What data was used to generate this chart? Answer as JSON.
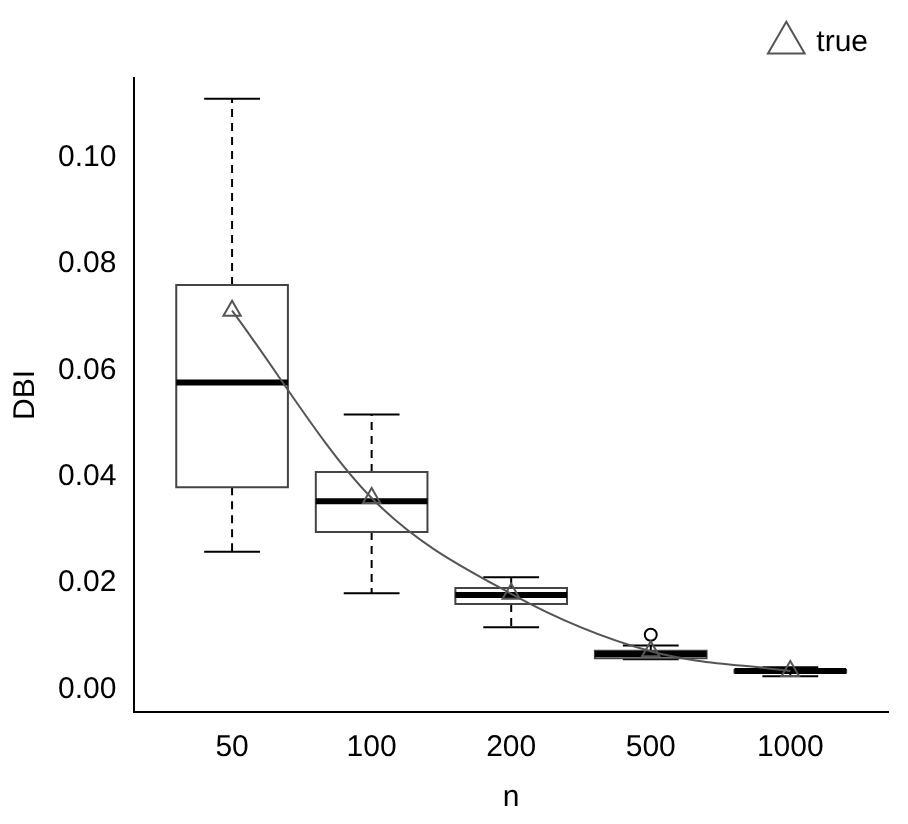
{
  "chart_data": {
    "type": "box",
    "xlabel": "n",
    "ylabel": "DBI",
    "categories": [
      "50",
      "100",
      "200",
      "500",
      "1000"
    ],
    "boxes": [
      {
        "low": 0.0259,
        "q1": 0.038,
        "median": 0.0577,
        "q3": 0.076,
        "high": 0.111
      },
      {
        "low": 0.0181,
        "q1": 0.0296,
        "median": 0.0354,
        "q3": 0.0409,
        "high": 0.0517
      },
      {
        "low": 0.0117,
        "q1": 0.0161,
        "median": 0.0178,
        "q3": 0.0191,
        "high": 0.0211
      },
      {
        "low": 0.0057,
        "q1": 0.0059,
        "median": 0.0067,
        "q3": 0.0073,
        "high": 0.0083,
        "outliers": [
          0.0103
        ]
      },
      {
        "low": 0.0025,
        "q1": 0.0032,
        "median": 0.0035,
        "q3": 0.0037,
        "high": 0.0042
      }
    ],
    "series": [
      {
        "name": "true",
        "type": "line",
        "color": "#555555",
        "marker": "triangle",
        "values": [
          0.0712,
          0.036,
          0.018,
          0.0072,
          0.0035
        ]
      }
    ],
    "ylim": [
      -0.0042,
      0.1149
    ],
    "yticks": [
      {
        "value": 0,
        "label": "0.00"
      },
      {
        "value": 0.02,
        "label": "0.02"
      },
      {
        "value": 0.04,
        "label": "0.04"
      },
      {
        "value": 0.06,
        "label": "0.06"
      },
      {
        "value": 0.08,
        "label": "0.08"
      },
      {
        "value": 0.1,
        "label": "0.10"
      }
    ],
    "grid": false,
    "legend": "top right"
  }
}
